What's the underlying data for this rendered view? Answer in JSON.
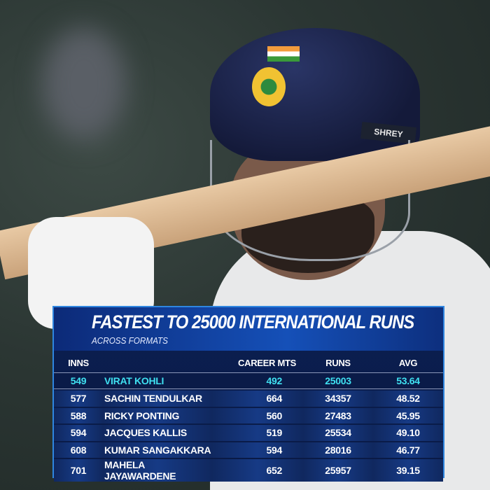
{
  "graphic": {
    "title": "FASTEST TO 25000 INTERNATIONAL RUNS",
    "subtitle": "ACROSS FORMATS",
    "accent_color": "#3fe0f0",
    "border_color": "#2f86e0",
    "columns": [
      "INNS",
      "",
      "CAREER MTS",
      "RUNS",
      "AVG"
    ],
    "rows": [
      {
        "inns": "549",
        "name": "VIRAT KOHLI",
        "mts": "492",
        "runs": "25003",
        "avg": "53.64",
        "highlight": true
      },
      {
        "inns": "577",
        "name": "SACHIN TENDULKAR",
        "mts": "664",
        "runs": "34357",
        "avg": "48.52"
      },
      {
        "inns": "588",
        "name": "RICKY PONTING",
        "mts": "560",
        "runs": "27483",
        "avg": "45.95"
      },
      {
        "inns": "594",
        "name": "JACQUES KALLIS",
        "mts": "519",
        "runs": "25534",
        "avg": "49.10"
      },
      {
        "inns": "608",
        "name": "KUMAR SANGAKKARA",
        "mts": "594",
        "runs": "28016",
        "avg": "46.77"
      },
      {
        "inns": "701",
        "name": "MAHELA JAYAWARDENE",
        "mts": "652",
        "runs": "25957",
        "avg": "39.15"
      }
    ]
  },
  "photo": {
    "helmet_brand": "SHREY"
  }
}
